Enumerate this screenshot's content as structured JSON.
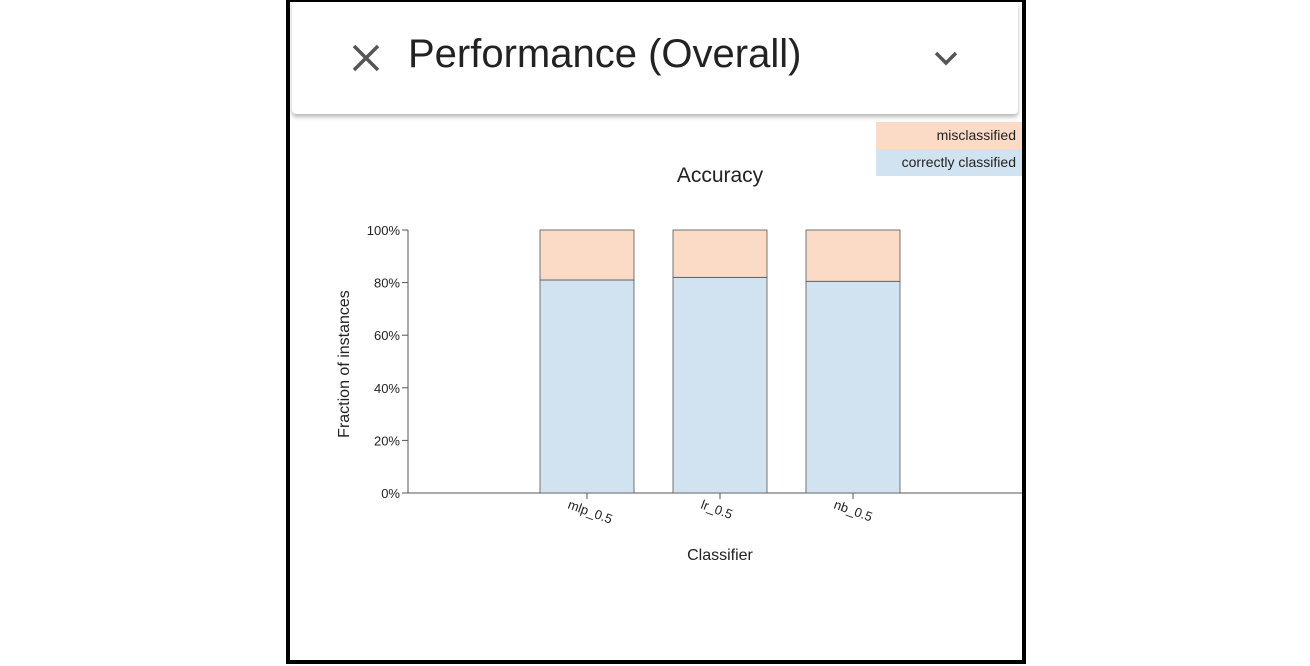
{
  "panel": {
    "title": "Performance (Overall)",
    "close_icon": "close-icon",
    "collapse_icon": "chevron-down-icon"
  },
  "chart_data": {
    "type": "bar",
    "stacked": true,
    "title": "Accuracy",
    "xlabel": "Classifier",
    "ylabel": "Fraction of instances",
    "categories": [
      "mlp_0.5",
      "lr_0.5",
      "nb_0.5"
    ],
    "ylim": [
      0,
      1
    ],
    "yticks": [
      "0%",
      "20%",
      "40%",
      "60%",
      "80%",
      "100%"
    ],
    "series": [
      {
        "name": "correctly classified",
        "values": [
          0.81,
          0.82,
          0.805
        ],
        "color": "#d1e3f0"
      },
      {
        "name": "misclassified",
        "values": [
          0.19,
          0.18,
          0.195
        ],
        "color": "#fbdac6"
      }
    ],
    "legend_position": "top-right",
    "grid": false
  }
}
